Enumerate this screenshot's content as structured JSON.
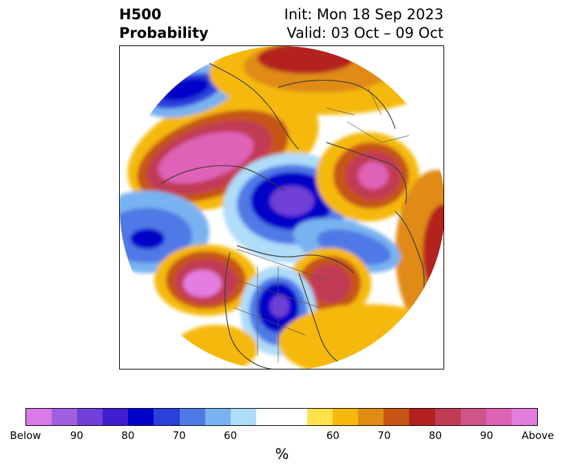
{
  "title": {
    "line1": "H500",
    "line2": "Probability",
    "init": "Init: Mon 18 Sep 2023",
    "valid": "Valid: 03 Oct – 09 Oct"
  },
  "colorbar": {
    "label": "%",
    "tick_labels": [
      "Below",
      "90",
      "80",
      "70",
      "60",
      "60",
      "70",
      "80",
      "90",
      "Above"
    ],
    "colors": [
      "#d97ae8",
      "#a25ee0",
      "#7040d8",
      "#3f1ecf",
      "#0000c8",
      "#2a3fdc",
      "#4f79e6",
      "#79b2f0",
      "#aedcf9",
      "#ffffff",
      "#ffe14c",
      "#f5b90d",
      "#e08b12",
      "#c65515",
      "#b3221f",
      "#c23b55",
      "#d0538a",
      "#de62b6",
      "#e37de0"
    ]
  },
  "map": {
    "projection": "north polar stereographic",
    "features": [
      "coastlines",
      "country borders",
      "state/province borders"
    ]
  }
}
